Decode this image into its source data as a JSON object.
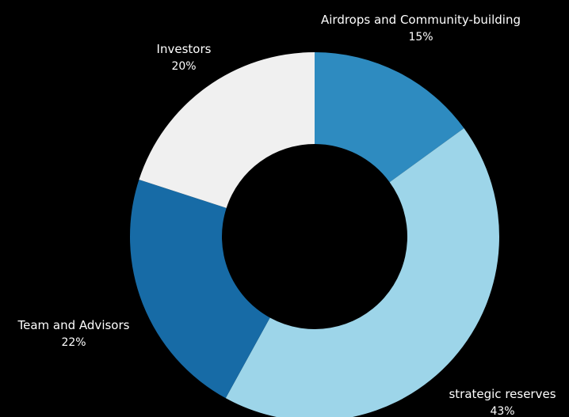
{
  "chart_data": {
    "type": "pie",
    "donut": true,
    "title": "",
    "slices": [
      {
        "label": "Airdrops and Community-building",
        "value": 15,
        "value_label": "15%",
        "color": "#2E8BC0"
      },
      {
        "label": "strategic reserves",
        "value": 43,
        "value_label": "43%",
        "color": "#9DD5E9"
      },
      {
        "label": "Team and Advisors",
        "value": 22,
        "value_label": "22%",
        "color": "#176BA6"
      },
      {
        "label": "Investors",
        "value": 20,
        "value_label": "20%",
        "color": "#F0F0F0"
      }
    ],
    "start_angle": "12 o'clock",
    "direction": "clockwise",
    "background_color": "#000000",
    "label_color": "#FFFFFF"
  }
}
